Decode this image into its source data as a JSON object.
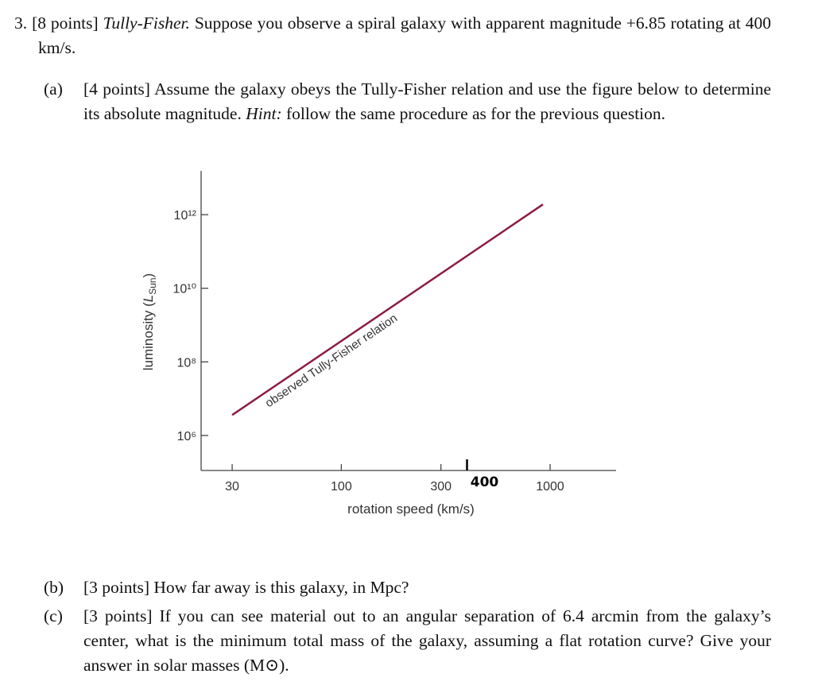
{
  "question": {
    "number": "3.",
    "points": "[8 points]",
    "title": "Tully-Fisher.",
    "text": "Suppose you observe a spiral galaxy with apparent magnitude +6.85 rotating at 400 km/s."
  },
  "parts": [
    {
      "label": "(a)",
      "points": "[4 points]",
      "text": "Assume the galaxy obeys the Tully-Fisher relation and use the figure below to determine its absolute magnitude.",
      "hint_label": "Hint:",
      "hint_text": "follow the same procedure as for the previous question."
    },
    {
      "label": "(b)",
      "points": "[3 points]",
      "text": "How far away is this galaxy, in Mpc?"
    },
    {
      "label": "(c)",
      "points": "[3 points]",
      "text": "If you can see material out to an angular separation of 6.4 arcmin from the galaxy’s center, what is the minimum total mass of the galaxy, assuming a flat rotation curve? Give your answer in solar masses (M⊙)."
    }
  ],
  "chart_data": {
    "type": "line",
    "xlabel": "rotation speed (km/s)",
    "ylabel": [
      "luminosity (",
      "L",
      "Sun",
      ")"
    ],
    "log_x": true,
    "log_y": true,
    "xlim": [
      21.3,
      2070
    ],
    "ylim": [
      112000,
      15500000000000
    ],
    "xticks": [
      30,
      100,
      300,
      1000
    ],
    "yticks": [
      {
        "value": 1000000,
        "label": "10⁶"
      },
      {
        "value": 100000000,
        "label": "10⁸"
      },
      {
        "value": 10000000000,
        "label": "10¹⁰"
      },
      {
        "value": 1000000000000,
        "label": "10¹²"
      }
    ],
    "annotation_tick": {
      "value": 400,
      "label": "400"
    },
    "series": [
      {
        "name": "observed Tully-Fisher relation",
        "color": "#8c1d40",
        "x": [
          30,
          924
        ],
        "values": [
          3600000,
          1900000000000
        ]
      }
    ]
  }
}
